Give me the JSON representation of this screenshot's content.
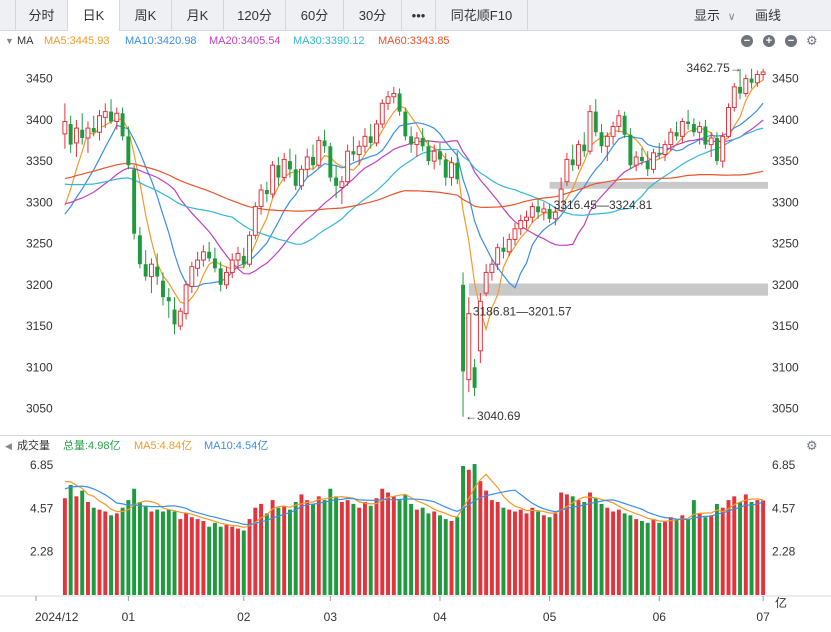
{
  "tabs": [
    {
      "label": "分时",
      "active": false
    },
    {
      "label": "日K",
      "active": true
    },
    {
      "label": "周K",
      "active": false
    },
    {
      "label": "月K",
      "active": false
    },
    {
      "label": "120分",
      "active": false
    },
    {
      "label": "60分",
      "active": false
    },
    {
      "label": "30分",
      "active": false
    },
    {
      "label": "•••",
      "active": false
    },
    {
      "label": "同花顺F10",
      "active": false
    }
  ],
  "toolbar": {
    "display_label": "显示",
    "display_icon": "chevron-down-icon",
    "draw_label": "画线"
  },
  "price_indicators": {
    "name": "MA",
    "items": [
      {
        "label": "MA5:3445.93",
        "color": "#f39a2b"
      },
      {
        "label": "MA10:3420.98",
        "color": "#3a8ee6"
      },
      {
        "label": "MA20:3405.54",
        "color": "#c23fc0"
      },
      {
        "label": "MA30:3390.12",
        "color": "#33b7d8"
      },
      {
        "label": "MA60:3343.85",
        "color": "#e8542c"
      }
    ]
  },
  "volume_indicators": {
    "name": "成交量",
    "items": [
      {
        "label": "总量:4.98亿",
        "color": "#2aa24a"
      },
      {
        "label": "MA5:4.84亿",
        "color": "#f39a2b"
      },
      {
        "label": "MA10:4.54亿",
        "color": "#3a8ee6"
      }
    ]
  },
  "chart_data": {
    "type": "candlestick",
    "price_axis": {
      "ticks": [
        3050,
        3100,
        3150,
        3200,
        3250,
        3300,
        3350,
        3400,
        3450
      ],
      "ylim": [
        3030,
        3475
      ]
    },
    "volume_axis": {
      "ticks": [
        "6.85",
        "4.57",
        "2.28"
      ],
      "unit": "亿",
      "ylim": [
        0,
        6.85
      ]
    },
    "x_labels": [
      {
        "label": "2024/12",
        "index": 0
      },
      {
        "label": "01",
        "index": 11
      },
      {
        "label": "02",
        "index": 31
      },
      {
        "label": "03",
        "index": 46
      },
      {
        "label": "04",
        "index": 65
      },
      {
        "label": "05",
        "index": 84
      },
      {
        "label": "06",
        "index": 103
      },
      {
        "label": "07",
        "index": 121
      }
    ],
    "annotations": [
      {
        "text": "3462.75",
        "index": 118,
        "price": 3462.75,
        "side": "left"
      },
      {
        "text": "3040.69",
        "index": 69,
        "price": 3040.69,
        "side": "right"
      },
      {
        "text": "3316.45—3324.81",
        "index": 84,
        "price": 3316.45
      },
      {
        "text": "3186.81—3201.57",
        "index": 70,
        "price": 3186.81
      }
    ],
    "gaps": [
      {
        "low": 3316.45,
        "high": 3324.81,
        "from_index": 84
      },
      {
        "low": 3186.81,
        "high": 3201.57,
        "from_index": 70
      }
    ],
    "candles": [
      {
        "o": 3383,
        "h": 3420,
        "l": 3365,
        "c": 3398,
        "v": 5.1
      },
      {
        "o": 3395,
        "h": 3405,
        "l": 3360,
        "c": 3370,
        "v": 5.8
      },
      {
        "o": 3372,
        "h": 3400,
        "l": 3355,
        "c": 3390,
        "v": 5.2
      },
      {
        "o": 3388,
        "h": 3408,
        "l": 3370,
        "c": 3378,
        "v": 5.5
      },
      {
        "o": 3378,
        "h": 3398,
        "l": 3360,
        "c": 3390,
        "v": 4.9
      },
      {
        "o": 3390,
        "h": 3405,
        "l": 3380,
        "c": 3385,
        "v": 4.6
      },
      {
        "o": 3385,
        "h": 3412,
        "l": 3375,
        "c": 3405,
        "v": 4.5
      },
      {
        "o": 3403,
        "h": 3420,
        "l": 3390,
        "c": 3410,
        "v": 4.4
      },
      {
        "o": 3410,
        "h": 3425,
        "l": 3395,
        "c": 3398,
        "v": 4.2
      },
      {
        "o": 3398,
        "h": 3415,
        "l": 3388,
        "c": 3408,
        "v": 4.3
      },
      {
        "o": 3408,
        "h": 3415,
        "l": 3375,
        "c": 3380,
        "v": 4.6
      },
      {
        "o": 3380,
        "h": 3392,
        "l": 3340,
        "c": 3345,
        "v": 5.0
      },
      {
        "o": 3340,
        "h": 3345,
        "l": 3255,
        "c": 3262,
        "v": 5.6
      },
      {
        "o": 3260,
        "h": 3270,
        "l": 3220,
        "c": 3225,
        "v": 4.9
      },
      {
        "o": 3225,
        "h": 3242,
        "l": 3205,
        "c": 3210,
        "v": 4.7
      },
      {
        "o": 3210,
        "h": 3232,
        "l": 3190,
        "c": 3225,
        "v": 4.4
      },
      {
        "o": 3222,
        "h": 3238,
        "l": 3200,
        "c": 3210,
        "v": 4.5
      },
      {
        "o": 3205,
        "h": 3215,
        "l": 3175,
        "c": 3185,
        "v": 4.4
      },
      {
        "o": 3185,
        "h": 3196,
        "l": 3160,
        "c": 3180,
        "v": 4.5
      },
      {
        "o": 3170,
        "h": 3185,
        "l": 3140,
        "c": 3152,
        "v": 4.4
      },
      {
        "o": 3150,
        "h": 3172,
        "l": 3145,
        "c": 3168,
        "v": 4.0
      },
      {
        "o": 3165,
        "h": 3205,
        "l": 3158,
        "c": 3200,
        "v": 4.3
      },
      {
        "o": 3198,
        "h": 3228,
        "l": 3190,
        "c": 3222,
        "v": 4.1
      },
      {
        "o": 3220,
        "h": 3240,
        "l": 3210,
        "c": 3230,
        "v": 4.0
      },
      {
        "o": 3230,
        "h": 3248,
        "l": 3222,
        "c": 3240,
        "v": 3.9
      },
      {
        "o": 3240,
        "h": 3252,
        "l": 3228,
        "c": 3232,
        "v": 3.6
      },
      {
        "o": 3232,
        "h": 3245,
        "l": 3215,
        "c": 3220,
        "v": 3.8
      },
      {
        "o": 3220,
        "h": 3228,
        "l": 3192,
        "c": 3200,
        "v": 3.6
      },
      {
        "o": 3200,
        "h": 3222,
        "l": 3195,
        "c": 3215,
        "v": 3.7
      },
      {
        "o": 3215,
        "h": 3238,
        "l": 3208,
        "c": 3230,
        "v": 3.6
      },
      {
        "o": 3230,
        "h": 3246,
        "l": 3220,
        "c": 3238,
        "v": 3.5
      },
      {
        "o": 3235,
        "h": 3245,
        "l": 3220,
        "c": 3225,
        "v": 3.4
      },
      {
        "o": 3225,
        "h": 3265,
        "l": 3222,
        "c": 3260,
        "v": 4.0
      },
      {
        "o": 3260,
        "h": 3300,
        "l": 3255,
        "c": 3295,
        "v": 4.6
      },
      {
        "o": 3295,
        "h": 3322,
        "l": 3285,
        "c": 3315,
        "v": 4.8
      },
      {
        "o": 3315,
        "h": 3325,
        "l": 3300,
        "c": 3310,
        "v": 4.3
      },
      {
        "o": 3310,
        "h": 3350,
        "l": 3305,
        "c": 3345,
        "v": 5.0
      },
      {
        "o": 3345,
        "h": 3355,
        "l": 3320,
        "c": 3330,
        "v": 4.6
      },
      {
        "o": 3330,
        "h": 3360,
        "l": 3325,
        "c": 3352,
        "v": 4.7
      },
      {
        "o": 3350,
        "h": 3365,
        "l": 3330,
        "c": 3340,
        "v": 4.5
      },
      {
        "o": 3340,
        "h": 3358,
        "l": 3315,
        "c": 3320,
        "v": 4.9
      },
      {
        "o": 3320,
        "h": 3345,
        "l": 3315,
        "c": 3340,
        "v": 5.3
      },
      {
        "o": 3340,
        "h": 3365,
        "l": 3330,
        "c": 3355,
        "v": 5.0
      },
      {
        "o": 3355,
        "h": 3370,
        "l": 3340,
        "c": 3345,
        "v": 4.8
      },
      {
        "o": 3345,
        "h": 3380,
        "l": 3342,
        "c": 3375,
        "v": 5.2
      },
      {
        "o": 3375,
        "h": 3388,
        "l": 3360,
        "c": 3368,
        "v": 5.0
      },
      {
        "o": 3368,
        "h": 3372,
        "l": 3325,
        "c": 3330,
        "v": 5.6
      },
      {
        "o": 3330,
        "h": 3345,
        "l": 3305,
        "c": 3320,
        "v": 5.2
      },
      {
        "o": 3318,
        "h": 3332,
        "l": 3298,
        "c": 3325,
        "v": 4.9
      },
      {
        "o": 3325,
        "h": 3370,
        "l": 3320,
        "c": 3362,
        "v": 5.0
      },
      {
        "o": 3362,
        "h": 3380,
        "l": 3350,
        "c": 3358,
        "v": 4.8
      },
      {
        "o": 3358,
        "h": 3375,
        "l": 3345,
        "c": 3368,
        "v": 4.6
      },
      {
        "o": 3368,
        "h": 3390,
        "l": 3360,
        "c": 3380,
        "v": 4.9
      },
      {
        "o": 3380,
        "h": 3395,
        "l": 3365,
        "c": 3372,
        "v": 4.7
      },
      {
        "o": 3372,
        "h": 3400,
        "l": 3368,
        "c": 3395,
        "v": 5.1
      },
      {
        "o": 3395,
        "h": 3425,
        "l": 3390,
        "c": 3420,
        "v": 5.6
      },
      {
        "o": 3420,
        "h": 3435,
        "l": 3412,
        "c": 3428,
        "v": 5.4
      },
      {
        "o": 3428,
        "h": 3440,
        "l": 3420,
        "c": 3432,
        "v": 5.2
      },
      {
        "o": 3432,
        "h": 3438,
        "l": 3405,
        "c": 3410,
        "v": 5.0
      },
      {
        "o": 3410,
        "h": 3415,
        "l": 3375,
        "c": 3380,
        "v": 5.3
      },
      {
        "o": 3380,
        "h": 3392,
        "l": 3360,
        "c": 3370,
        "v": 4.8
      },
      {
        "o": 3370,
        "h": 3385,
        "l": 3355,
        "c": 3378,
        "v": 4.5
      },
      {
        "o": 3378,
        "h": 3390,
        "l": 3362,
        "c": 3368,
        "v": 4.6
      },
      {
        "o": 3368,
        "h": 3375,
        "l": 3345,
        "c": 3350,
        "v": 4.3
      },
      {
        "o": 3350,
        "h": 3370,
        "l": 3340,
        "c": 3362,
        "v": 4.4
      },
      {
        "o": 3362,
        "h": 3372,
        "l": 3345,
        "c": 3352,
        "v": 4.2
      },
      {
        "o": 3352,
        "h": 3360,
        "l": 3320,
        "c": 3330,
        "v": 4.0
      },
      {
        "o": 3330,
        "h": 3355,
        "l": 3320,
        "c": 3348,
        "v": 3.9
      },
      {
        "o": 3348,
        "h": 3362,
        "l": 3322,
        "c": 3328,
        "v": 4.1
      },
      {
        "o": 3200,
        "h": 3215,
        "l": 3040,
        "c": 3095,
        "v": 6.8
      },
      {
        "o": 3085,
        "h": 3185,
        "l": 3070,
        "c": 3165,
        "v": 6.6
      },
      {
        "o": 3100,
        "h": 3110,
        "l": 3065,
        "c": 3075,
        "v": 6.9
      },
      {
        "o": 3120,
        "h": 3190,
        "l": 3105,
        "c": 3180,
        "v": 6.0
      },
      {
        "o": 3190,
        "h": 3225,
        "l": 3186,
        "c": 3215,
        "v": 5.5
      },
      {
        "o": 3215,
        "h": 3232,
        "l": 3205,
        "c": 3225,
        "v": 5.0
      },
      {
        "o": 3225,
        "h": 3250,
        "l": 3218,
        "c": 3245,
        "v": 4.9
      },
      {
        "o": 3245,
        "h": 3258,
        "l": 3232,
        "c": 3240,
        "v": 4.6
      },
      {
        "o": 3240,
        "h": 3262,
        "l": 3235,
        "c": 3255,
        "v": 4.5
      },
      {
        "o": 3255,
        "h": 3275,
        "l": 3248,
        "c": 3268,
        "v": 4.4
      },
      {
        "o": 3268,
        "h": 3285,
        "l": 3260,
        "c": 3278,
        "v": 4.5
      },
      {
        "o": 3278,
        "h": 3290,
        "l": 3268,
        "c": 3282,
        "v": 4.3
      },
      {
        "o": 3282,
        "h": 3300,
        "l": 3275,
        "c": 3295,
        "v": 4.6
      },
      {
        "o": 3295,
        "h": 3305,
        "l": 3280,
        "c": 3288,
        "v": 4.4
      },
      {
        "o": 3288,
        "h": 3300,
        "l": 3278,
        "c": 3292,
        "v": 4.2
      },
      {
        "o": 3292,
        "h": 3298,
        "l": 3275,
        "c": 3280,
        "v": 4.1
      },
      {
        "o": 3280,
        "h": 3295,
        "l": 3272,
        "c": 3288,
        "v": 4.3
      },
      {
        "o": 3290,
        "h": 3330,
        "l": 3288,
        "c": 3316,
        "v": 5.4
      },
      {
        "o": 3325,
        "h": 3360,
        "l": 3320,
        "c": 3352,
        "v": 5.3
      },
      {
        "o": 3352,
        "h": 3370,
        "l": 3338,
        "c": 3345,
        "v": 5.2
      },
      {
        "o": 3345,
        "h": 3375,
        "l": 3340,
        "c": 3370,
        "v": 5.0
      },
      {
        "o": 3370,
        "h": 3385,
        "l": 3355,
        "c": 3362,
        "v": 4.9
      },
      {
        "o": 3362,
        "h": 3418,
        "l": 3358,
        "c": 3410,
        "v": 5.4
      },
      {
        "o": 3410,
        "h": 3425,
        "l": 3380,
        "c": 3385,
        "v": 5.1
      },
      {
        "o": 3385,
        "h": 3395,
        "l": 3360,
        "c": 3368,
        "v": 4.8
      },
      {
        "o": 3368,
        "h": 3385,
        "l": 3350,
        "c": 3380,
        "v": 4.6
      },
      {
        "o": 3380,
        "h": 3398,
        "l": 3370,
        "c": 3392,
        "v": 4.4
      },
      {
        "o": 3392,
        "h": 3412,
        "l": 3385,
        "c": 3405,
        "v": 4.5
      },
      {
        "o": 3405,
        "h": 3410,
        "l": 3378,
        "c": 3382,
        "v": 4.3
      },
      {
        "o": 3382,
        "h": 3390,
        "l": 3340,
        "c": 3345,
        "v": 4.2
      },
      {
        "o": 3345,
        "h": 3362,
        "l": 3338,
        "c": 3355,
        "v": 4.0
      },
      {
        "o": 3355,
        "h": 3366,
        "l": 3345,
        "c": 3350,
        "v": 3.9
      },
      {
        "o": 3350,
        "h": 3362,
        "l": 3332,
        "c": 3340,
        "v": 3.8
      },
      {
        "o": 3340,
        "h": 3365,
        "l": 3335,
        "c": 3360,
        "v": 4.0
      },
      {
        "o": 3360,
        "h": 3372,
        "l": 3352,
        "c": 3358,
        "v": 3.8
      },
      {
        "o": 3358,
        "h": 3375,
        "l": 3350,
        "c": 3370,
        "v": 3.9
      },
      {
        "o": 3370,
        "h": 3390,
        "l": 3362,
        "c": 3385,
        "v": 4.1
      },
      {
        "o": 3385,
        "h": 3398,
        "l": 3375,
        "c": 3380,
        "v": 4.0
      },
      {
        "o": 3380,
        "h": 3402,
        "l": 3372,
        "c": 3398,
        "v": 4.2
      },
      {
        "o": 3398,
        "h": 3412,
        "l": 3388,
        "c": 3395,
        "v": 4.0
      },
      {
        "o": 3395,
        "h": 3402,
        "l": 3380,
        "c": 3385,
        "v": 5.0
      },
      {
        "o": 3385,
        "h": 3398,
        "l": 3370,
        "c": 3392,
        "v": 4.3
      },
      {
        "o": 3392,
        "h": 3400,
        "l": 3365,
        "c": 3370,
        "v": 4.1
      },
      {
        "o": 3370,
        "h": 3385,
        "l": 3355,
        "c": 3378,
        "v": 4.2
      },
      {
        "o": 3378,
        "h": 3385,
        "l": 3345,
        "c": 3350,
        "v": 4.8
      },
      {
        "o": 3350,
        "h": 3385,
        "l": 3342,
        "c": 3380,
        "v": 4.6
      },
      {
        "o": 3380,
        "h": 3420,
        "l": 3378,
        "c": 3415,
        "v": 5.0
      },
      {
        "o": 3415,
        "h": 3445,
        "l": 3410,
        "c": 3440,
        "v": 5.2
      },
      {
        "o": 3440,
        "h": 3462,
        "l": 3425,
        "c": 3432,
        "v": 4.9
      },
      {
        "o": 3432,
        "h": 3455,
        "l": 3428,
        "c": 3450,
        "v": 5.3
      },
      {
        "o": 3450,
        "h": 3462,
        "l": 3438,
        "c": 3445,
        "v": 4.9
      },
      {
        "o": 3445,
        "h": 3460,
        "l": 3440,
        "c": 3455,
        "v": 5.0
      },
      {
        "o": 3455,
        "h": 3462,
        "l": 3448,
        "c": 3458,
        "v": 4.98
      }
    ]
  }
}
